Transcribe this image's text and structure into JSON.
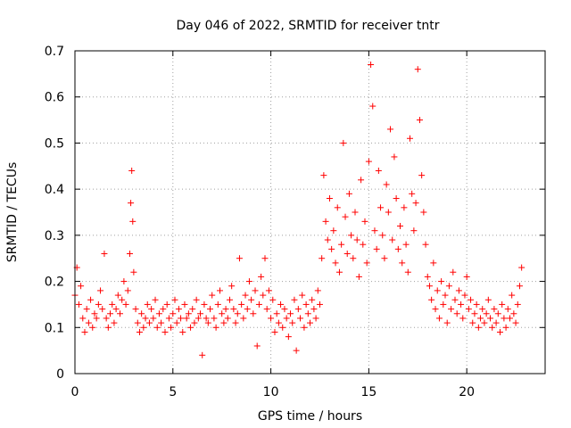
{
  "chart_data": {
    "type": "scatter",
    "title": "Day 046 of 2022, SRMTID for receiver tntr",
    "xlabel": "GPS time / hours",
    "ylabel": "SRMTID / TECUs",
    "xlim": [
      0,
      24
    ],
    "ylim": [
      0,
      0.7
    ],
    "xticks": [
      0,
      5,
      10,
      15,
      20
    ],
    "yticks": [
      0,
      0.1,
      0.2,
      0.3,
      0.4,
      0.5,
      0.6,
      0.7
    ],
    "xtick_labels": [
      "0",
      "5",
      "10",
      "15",
      "20"
    ],
    "ytick_labels": [
      "0",
      "0.1",
      "0.2",
      "0.3",
      "0.4",
      "0.5",
      "0.6",
      "0.7"
    ],
    "grid": true,
    "marker": "+",
    "series": [
      {
        "name": "SRMTID",
        "color": "#ff0000",
        "x": [
          0.0,
          0.1,
          0.2,
          0.3,
          0.4,
          0.5,
          0.6,
          0.7,
          0.8,
          0.9,
          1.0,
          1.1,
          1.2,
          1.3,
          1.4,
          1.5,
          1.6,
          1.7,
          1.8,
          1.9,
          2.0,
          2.1,
          2.2,
          2.3,
          2.4,
          2.5,
          2.6,
          2.7,
          2.8,
          2.85,
          2.9,
          2.95,
          3.0,
          3.1,
          3.2,
          3.3,
          3.4,
          3.5,
          3.6,
          3.7,
          3.8,
          3.9,
          4.0,
          4.1,
          4.2,
          4.3,
          4.4,
          4.5,
          4.6,
          4.7,
          4.8,
          4.9,
          5.0,
          5.1,
          5.2,
          5.3,
          5.4,
          5.5,
          5.6,
          5.7,
          5.8,
          5.9,
          6.0,
          6.1,
          6.2,
          6.3,
          6.4,
          6.5,
          6.6,
          6.7,
          6.8,
          6.9,
          7.0,
          7.1,
          7.2,
          7.3,
          7.4,
          7.5,
          7.6,
          7.7,
          7.8,
          7.9,
          8.0,
          8.1,
          8.2,
          8.3,
          8.4,
          8.5,
          8.6,
          8.7,
          8.8,
          8.9,
          9.0,
          9.1,
          9.2,
          9.3,
          9.4,
          9.5,
          9.6,
          9.7,
          9.8,
          9.9,
          10.0,
          10.1,
          10.2,
          10.3,
          10.4,
          10.5,
          10.6,
          10.7,
          10.8,
          10.9,
          11.0,
          11.1,
          11.2,
          11.3,
          11.4,
          11.5,
          11.6,
          11.7,
          11.8,
          11.9,
          12.0,
          12.1,
          12.2,
          12.3,
          12.4,
          12.5,
          12.6,
          12.7,
          12.8,
          12.9,
          13.0,
          13.1,
          13.2,
          13.3,
          13.4,
          13.5,
          13.6,
          13.7,
          13.8,
          13.9,
          14.0,
          14.1,
          14.2,
          14.3,
          14.4,
          14.5,
          14.6,
          14.7,
          14.8,
          14.9,
          15.0,
          15.1,
          15.2,
          15.3,
          15.4,
          15.5,
          15.6,
          15.7,
          15.8,
          15.9,
          16.0,
          16.1,
          16.2,
          16.3,
          16.4,
          16.5,
          16.6,
          16.7,
          16.8,
          16.9,
          17.0,
          17.1,
          17.2,
          17.3,
          17.4,
          17.5,
          17.6,
          17.7,
          17.8,
          17.9,
          18.0,
          18.1,
          18.2,
          18.3,
          18.4,
          18.5,
          18.6,
          18.7,
          18.8,
          18.9,
          19.0,
          19.1,
          19.2,
          19.3,
          19.4,
          19.5,
          19.6,
          19.7,
          19.8,
          19.9,
          20.0,
          20.1,
          20.2,
          20.3,
          20.4,
          20.5,
          20.6,
          20.7,
          20.8,
          20.9,
          21.0,
          21.1,
          21.2,
          21.3,
          21.4,
          21.5,
          21.6,
          21.7,
          21.8,
          21.9,
          22.0,
          22.1,
          22.2,
          22.3,
          22.4,
          22.5,
          22.6,
          22.7,
          22.8
        ],
        "y": [
          0.17,
          0.23,
          0.15,
          0.19,
          0.12,
          0.09,
          0.14,
          0.11,
          0.16,
          0.1,
          0.13,
          0.12,
          0.15,
          0.18,
          0.14,
          0.26,
          0.12,
          0.1,
          0.13,
          0.15,
          0.11,
          0.14,
          0.17,
          0.13,
          0.16,
          0.2,
          0.15,
          0.18,
          0.26,
          0.37,
          0.44,
          0.33,
          0.22,
          0.14,
          0.11,
          0.09,
          0.13,
          0.1,
          0.12,
          0.15,
          0.11,
          0.14,
          0.12,
          0.16,
          0.1,
          0.13,
          0.11,
          0.14,
          0.09,
          0.15,
          0.12,
          0.1,
          0.13,
          0.16,
          0.11,
          0.14,
          0.12,
          0.09,
          0.15,
          0.12,
          0.13,
          0.1,
          0.14,
          0.11,
          0.16,
          0.12,
          0.13,
          0.04,
          0.15,
          0.12,
          0.11,
          0.14,
          0.17,
          0.12,
          0.1,
          0.15,
          0.18,
          0.13,
          0.11,
          0.14,
          0.12,
          0.16,
          0.19,
          0.14,
          0.11,
          0.13,
          0.25,
          0.15,
          0.12,
          0.17,
          0.14,
          0.2,
          0.16,
          0.13,
          0.18,
          0.06,
          0.15,
          0.21,
          0.17,
          0.25,
          0.14,
          0.18,
          0.12,
          0.16,
          0.09,
          0.13,
          0.11,
          0.15,
          0.1,
          0.14,
          0.12,
          0.08,
          0.13,
          0.11,
          0.16,
          0.05,
          0.14,
          0.12,
          0.17,
          0.1,
          0.15,
          0.13,
          0.11,
          0.16,
          0.14,
          0.12,
          0.18,
          0.15,
          0.25,
          0.43,
          0.33,
          0.29,
          0.38,
          0.27,
          0.31,
          0.24,
          0.36,
          0.22,
          0.28,
          0.5,
          0.34,
          0.26,
          0.39,
          0.3,
          0.25,
          0.35,
          0.29,
          0.21,
          0.42,
          0.28,
          0.33,
          0.24,
          0.46,
          0.67,
          0.58,
          0.31,
          0.27,
          0.44,
          0.36,
          0.3,
          0.25,
          0.41,
          0.35,
          0.53,
          0.29,
          0.47,
          0.38,
          0.27,
          0.32,
          0.24,
          0.36,
          0.28,
          0.22,
          0.51,
          0.39,
          0.31,
          0.37,
          0.66,
          0.55,
          0.43,
          0.35,
          0.28,
          0.21,
          0.19,
          0.16,
          0.24,
          0.14,
          0.18,
          0.12,
          0.2,
          0.15,
          0.17,
          0.11,
          0.19,
          0.14,
          0.22,
          0.16,
          0.13,
          0.18,
          0.15,
          0.12,
          0.17,
          0.21,
          0.14,
          0.16,
          0.11,
          0.13,
          0.15,
          0.1,
          0.12,
          0.14,
          0.11,
          0.13,
          0.16,
          0.12,
          0.1,
          0.14,
          0.11,
          0.13,
          0.09,
          0.15,
          0.12,
          0.1,
          0.14,
          0.12,
          0.17,
          0.13,
          0.11,
          0.15,
          0.19,
          0.23
        ]
      }
    ]
  }
}
